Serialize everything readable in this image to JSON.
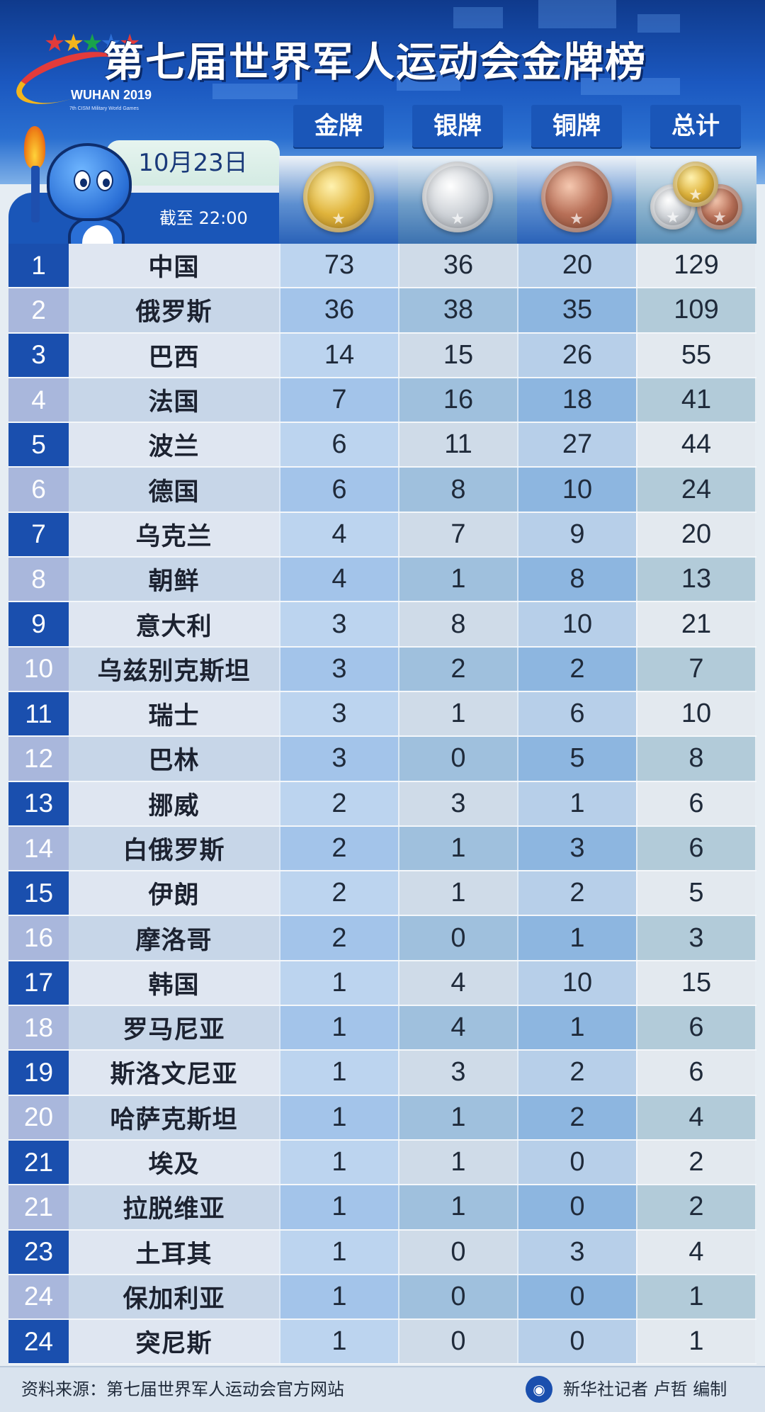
{
  "header": {
    "title": "第七届世界军人运动会金牌榜",
    "logo": {
      "wordmark": "WUHAN 2019",
      "subtitle": "7th CISM Military World Games"
    },
    "columns": {
      "gold": "金牌",
      "silver": "银牌",
      "bronze": "铜牌",
      "total": "总计"
    }
  },
  "date_label": "10月23日",
  "as_of": "截至 22:00",
  "icons": {
    "mascot": "torch-mascot-icon",
    "gold_medal": "gold-medal-icon",
    "silver_medal": "silver-medal-icon",
    "bronze_medal": "bronze-medal-icon",
    "total_medals": "medal-stack-icon",
    "publisher": "xinhua-logo-icon"
  },
  "colors": {
    "header_blue": "#1a56b8",
    "rank_dark": "#1a4fae",
    "rank_light": "#a9b7dc",
    "gold": "#d4a62a",
    "silver": "#c8ccd2",
    "bronze": "#b06a4a"
  },
  "table": {
    "rows": [
      {
        "rank": "1",
        "country": "中国",
        "gold": "73",
        "silver": "36",
        "bronze": "20",
        "total": "129"
      },
      {
        "rank": "2",
        "country": "俄罗斯",
        "gold": "36",
        "silver": "38",
        "bronze": "35",
        "total": "109"
      },
      {
        "rank": "3",
        "country": "巴西",
        "gold": "14",
        "silver": "15",
        "bronze": "26",
        "total": "55"
      },
      {
        "rank": "4",
        "country": "法国",
        "gold": "7",
        "silver": "16",
        "bronze": "18",
        "total": "41"
      },
      {
        "rank": "5",
        "country": "波兰",
        "gold": "6",
        "silver": "11",
        "bronze": "27",
        "total": "44"
      },
      {
        "rank": "6",
        "country": "德国",
        "gold": "6",
        "silver": "8",
        "bronze": "10",
        "total": "24"
      },
      {
        "rank": "7",
        "country": "乌克兰",
        "gold": "4",
        "silver": "7",
        "bronze": "9",
        "total": "20"
      },
      {
        "rank": "8",
        "country": "朝鲜",
        "gold": "4",
        "silver": "1",
        "bronze": "8",
        "total": "13"
      },
      {
        "rank": "9",
        "country": "意大利",
        "gold": "3",
        "silver": "8",
        "bronze": "10",
        "total": "21"
      },
      {
        "rank": "10",
        "country": "乌兹别克斯坦",
        "gold": "3",
        "silver": "2",
        "bronze": "2",
        "total": "7"
      },
      {
        "rank": "11",
        "country": "瑞士",
        "gold": "3",
        "silver": "1",
        "bronze": "6",
        "total": "10"
      },
      {
        "rank": "12",
        "country": "巴林",
        "gold": "3",
        "silver": "0",
        "bronze": "5",
        "total": "8"
      },
      {
        "rank": "13",
        "country": "挪威",
        "gold": "2",
        "silver": "3",
        "bronze": "1",
        "total": "6"
      },
      {
        "rank": "14",
        "country": "白俄罗斯",
        "gold": "2",
        "silver": "1",
        "bronze": "3",
        "total": "6"
      },
      {
        "rank": "15",
        "country": "伊朗",
        "gold": "2",
        "silver": "1",
        "bronze": "2",
        "total": "5"
      },
      {
        "rank": "16",
        "country": "摩洛哥",
        "gold": "2",
        "silver": "0",
        "bronze": "1",
        "total": "3"
      },
      {
        "rank": "17",
        "country": "韩国",
        "gold": "1",
        "silver": "4",
        "bronze": "10",
        "total": "15"
      },
      {
        "rank": "18",
        "country": "罗马尼亚",
        "gold": "1",
        "silver": "4",
        "bronze": "1",
        "total": "6"
      },
      {
        "rank": "19",
        "country": "斯洛文尼亚",
        "gold": "1",
        "silver": "3",
        "bronze": "2",
        "total": "6"
      },
      {
        "rank": "20",
        "country": "哈萨克斯坦",
        "gold": "1",
        "silver": "1",
        "bronze": "2",
        "total": "4"
      },
      {
        "rank": "21",
        "country": "埃及",
        "gold": "1",
        "silver": "1",
        "bronze": "0",
        "total": "2"
      },
      {
        "rank": "21",
        "country": "拉脱维亚",
        "gold": "1",
        "silver": "1",
        "bronze": "0",
        "total": "2"
      },
      {
        "rank": "23",
        "country": "土耳其",
        "gold": "1",
        "silver": "0",
        "bronze": "3",
        "total": "4"
      },
      {
        "rank": "24",
        "country": "保加利亚",
        "gold": "1",
        "silver": "0",
        "bronze": "0",
        "total": "1"
      },
      {
        "rank": "24",
        "country": "突尼斯",
        "gold": "1",
        "silver": "0",
        "bronze": "0",
        "total": "1"
      }
    ]
  },
  "footer": {
    "source": "资料来源：第七届世界军人运动会官方网站",
    "credit": "新华社记者 卢哲 编制"
  }
}
